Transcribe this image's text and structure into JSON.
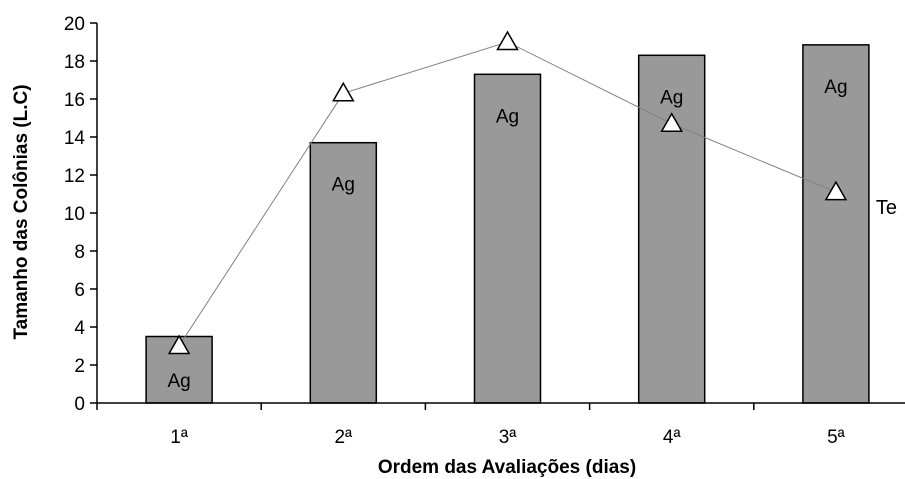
{
  "chart_data": {
    "type": "bar",
    "categories": [
      "1ª",
      "2ª",
      "3ª",
      "4ª",
      "5ª"
    ],
    "xlabel": "Ordem das Avaliações (dias)",
    "ylabel": "Tamanho das Colônias (L.C)",
    "ylim": [
      0,
      20
    ],
    "yticks": [
      0,
      2,
      4,
      6,
      8,
      10,
      12,
      14,
      16,
      18,
      20
    ],
    "grid": false,
    "legend": "none",
    "series": [
      {
        "name": "Ag",
        "type": "bar",
        "color": "#999999",
        "values": [
          3.5,
          13.7,
          17.3,
          18.3,
          18.85
        ],
        "point_labels": [
          "Ag",
          "Ag",
          "Ag",
          "Ag",
          "Ag"
        ]
      },
      {
        "name": "Te",
        "type": "line",
        "marker": "triangle",
        "color": "#808080",
        "values": [
          3.0,
          16.3,
          19.0,
          14.7,
          11.1
        ]
      }
    ]
  }
}
